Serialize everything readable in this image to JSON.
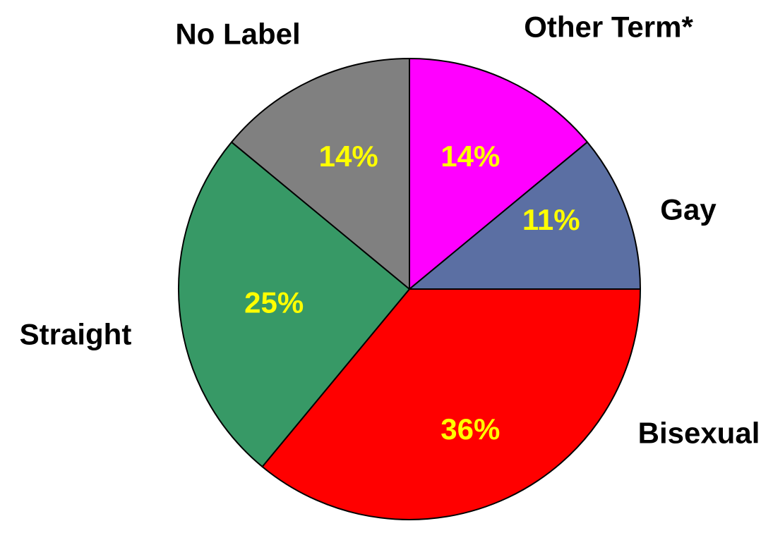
{
  "chart_data": {
    "type": "pie",
    "title": "",
    "start_angle_deg": 0,
    "direction": "clockwise",
    "value_label_color": "#FFFF00",
    "slices": [
      {
        "label": "Other Term*",
        "value": 14,
        "value_label": "14%",
        "color": "#FF00FF"
      },
      {
        "label": "Gay",
        "value": 11,
        "value_label": "11%",
        "color": "#5B6FA3"
      },
      {
        "label": "Bisexual",
        "value": 36,
        "value_label": "36%",
        "color": "#FF0000"
      },
      {
        "label": "Straight",
        "value": 25,
        "value_label": "25%",
        "color": "#379966"
      },
      {
        "label": "No Label",
        "value": 14,
        "value_label": "14%",
        "color": "#808080"
      }
    ]
  }
}
